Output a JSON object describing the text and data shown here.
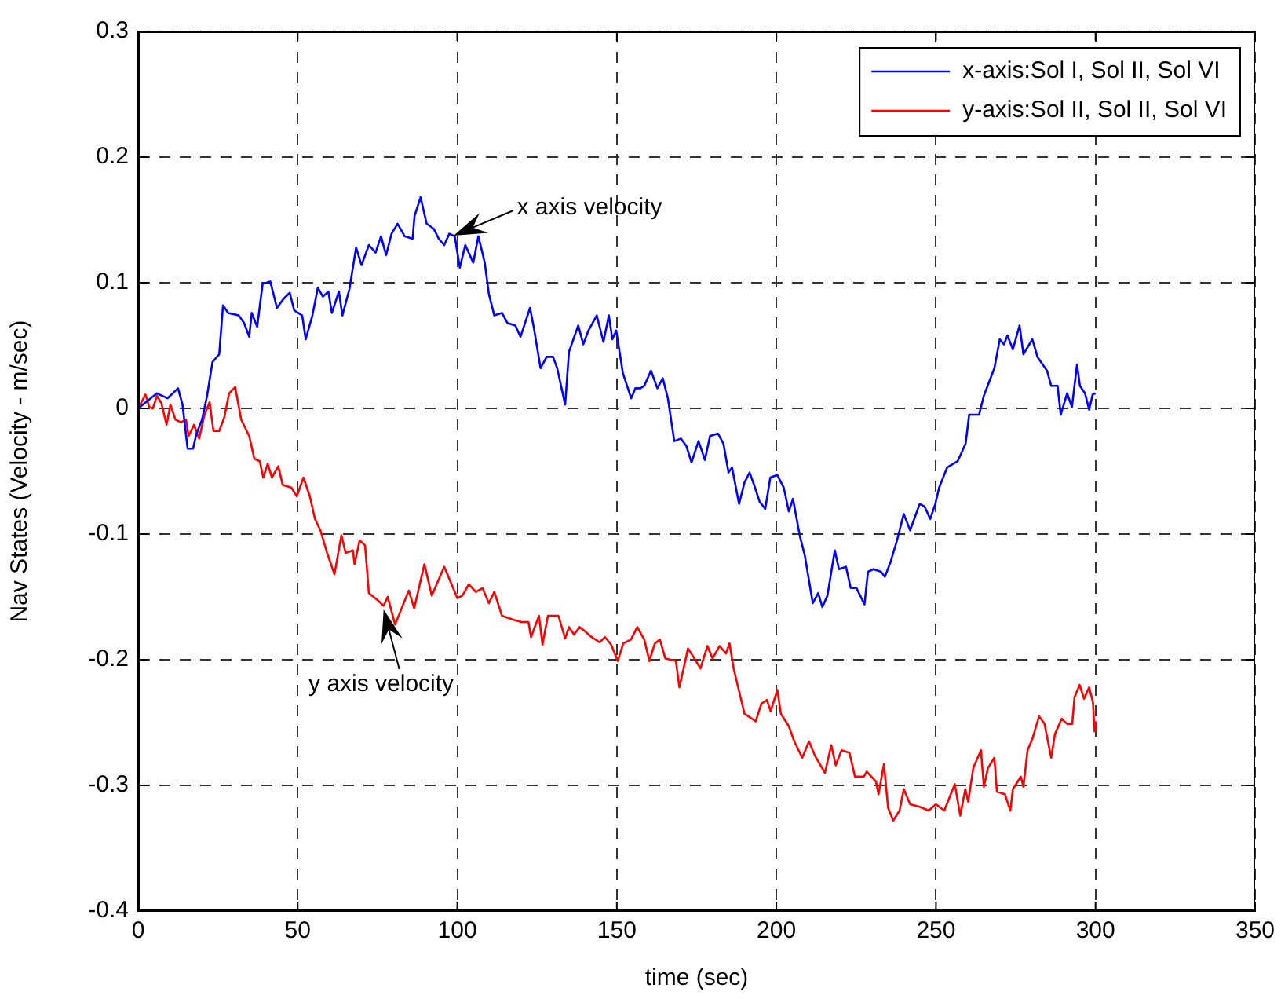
{
  "chart_data": {
    "type": "line",
    "xlabel": "time (sec)",
    "ylabel": "Nav States (Velocity - m/sec)",
    "xlim": [
      0,
      350
    ],
    "xticks": [
      0,
      50,
      100,
      150,
      200,
      250,
      300,
      350
    ],
    "ylim": [
      -0.4,
      0.3
    ],
    "yticks": [
      -0.4,
      -0.3,
      -0.2,
      -0.1,
      0,
      0.1,
      0.2,
      0.3
    ],
    "grid": true,
    "legend": "top right",
    "line_style": "solid",
    "marker": "none",
    "annotations": [
      {
        "text": "x axis velocity",
        "x": 99,
        "y": 0.137
      },
      {
        "text": "y axis velocity",
        "x": 77,
        "y": -0.16
      }
    ],
    "series": [
      {
        "name": "x-axis:Sol I, Sol II, Sol VI",
        "color": "#0000ff",
        "x": [
          0,
          5.9,
          9.2,
          12.5,
          13.9,
          15.5,
          17.2,
          18.3,
          20,
          21.6,
          23.3,
          25.4,
          26.6,
          28.2,
          31.5,
          33.2,
          34.8,
          35.6,
          37.3,
          39,
          41.4,
          43.5,
          45.5,
          47.5,
          48.9,
          51.4,
          52.5,
          54.6,
          56.3,
          57.9,
          59.6,
          60.7,
          62.9,
          64,
          66.2,
          68.3,
          70,
          72.3,
          74.4,
          76.1,
          77.7,
          79.4,
          81.3,
          83.5,
          86,
          86.6,
          88.5,
          90.4,
          92.6,
          94.2,
          95.9,
          97.5,
          99.2,
          100.8,
          102.5,
          105,
          106.6,
          108.6,
          109.9,
          111.6,
          114,
          115.7,
          118.2,
          119.8,
          122.8,
          124,
          126.1,
          128,
          130,
          131.3,
          133.8,
          135,
          137.9,
          139.5,
          141.1,
          143.7,
          145.8,
          147.5,
          148.6,
          149.8,
          151.9,
          154.5,
          155.8,
          157.4,
          158.6,
          160.7,
          162.7,
          164.4,
          166,
          168,
          170.1,
          171.8,
          173.4,
          175.6,
          177.6,
          179.2,
          181.7,
          183.4,
          185,
          186.1,
          188.3,
          190,
          191.6,
          193.3,
          194.7,
          196.5,
          198.1,
          200.3,
          202.3,
          203.9,
          205.2,
          207.3,
          208.9,
          211.4,
          213.1,
          214.4,
          216,
          218.3,
          219.6,
          221.8,
          223.3,
          225.1,
          227.6,
          228.7,
          230.4,
          232.8,
          234,
          235.8,
          237.8,
          239.9,
          241.9,
          243.2,
          244.9,
          246.4,
          248.2,
          249.8,
          251,
          253.5,
          256.8,
          259.3,
          260.4,
          263.5,
          265,
          268.3,
          270,
          271.3,
          272.4,
          274.1,
          276.2,
          277.4,
          280.2,
          281.8,
          284.8,
          286.1,
          288.1,
          289.1,
          291.1,
          292.6,
          294.2,
          295.1,
          296.7,
          298,
          299.1,
          300
        ],
        "values": [
          0,
          0.012,
          0.008,
          0.016,
          0.003,
          -0.032,
          -0.032,
          -0.02,
          -0.009,
          0.01,
          0.037,
          0.043,
          0.082,
          0.076,
          0.074,
          0.068,
          0.057,
          0.076,
          0.065,
          0.099,
          0.101,
          0.08,
          0.087,
          0.092,
          0.078,
          0.074,
          0.055,
          0.074,
          0.096,
          0.089,
          0.093,
          0.076,
          0.093,
          0.074,
          0.095,
          0.128,
          0.114,
          0.13,
          0.124,
          0.137,
          0.122,
          0.139,
          0.147,
          0.137,
          0.135,
          0.153,
          0.168,
          0.147,
          0.143,
          0.135,
          0.13,
          0.139,
          0.137,
          0.112,
          0.13,
          0.116,
          0.137,
          0.116,
          0.091,
          0.074,
          0.076,
          0.068,
          0.066,
          0.057,
          0.08,
          0.064,
          0.032,
          0.041,
          0.041,
          0.032,
          0.003,
          0.045,
          0.066,
          0.051,
          0.062,
          0.074,
          0.053,
          0.074,
          0.055,
          0.062,
          0.028,
          0.008,
          0.016,
          0.016,
          0.018,
          0.03,
          0.016,
          0.024,
          0.008,
          -0.026,
          -0.024,
          -0.03,
          -0.043,
          -0.026,
          -0.041,
          -0.022,
          -0.02,
          -0.028,
          -0.051,
          -0.047,
          -0.076,
          -0.059,
          -0.051,
          -0.063,
          -0.074,
          -0.08,
          -0.055,
          -0.053,
          -0.063,
          -0.082,
          -0.072,
          -0.101,
          -0.117,
          -0.155,
          -0.147,
          -0.158,
          -0.149,
          -0.113,
          -0.128,
          -0.126,
          -0.143,
          -0.143,
          -0.156,
          -0.13,
          -0.128,
          -0.13,
          -0.134,
          -0.122,
          -0.105,
          -0.084,
          -0.097,
          -0.088,
          -0.076,
          -0.078,
          -0.088,
          -0.076,
          -0.063,
          -0.047,
          -0.042,
          -0.028,
          -0.005,
          -0.005,
          0.01,
          0.032,
          0.055,
          0.051,
          0.058,
          0.047,
          0.066,
          0.043,
          0.055,
          0.041,
          0.03,
          0.018,
          0.018,
          -0.005,
          0.012,
          0.001,
          0.035,
          0.018,
          0.012,
          -0.001,
          0.011,
          0.012
        ]
      },
      {
        "name": "y-axis:Sol II, Sol II, Sol VI",
        "color": "#ff0000",
        "x": [
          0,
          2.3,
          3.5,
          4.6,
          5.9,
          7.3,
          8.9,
          10.1,
          11.7,
          13.4,
          15,
          15.8,
          17.5,
          19.1,
          20.8,
          22.4,
          23.6,
          25.4,
          27,
          28.5,
          30.4,
          32.3,
          34.8,
          36.4,
          38.1,
          39.2,
          40.6,
          41.9,
          43.9,
          45.3,
          48,
          49.7,
          51.8,
          53.8,
          55.4,
          57.1,
          59.2,
          61.5,
          63.7,
          65,
          67.3,
          67.8,
          69.4,
          71.1,
          72.3,
          75.2,
          76.9,
          78.2,
          80.5,
          84.8,
          86.5,
          89.7,
          92,
          95.9,
          100,
          101.6,
          103.6,
          105.8,
          107.9,
          109.9,
          111.6,
          114,
          117.3,
          120.1,
          122.3,
          123.1,
          125.6,
          126.7,
          128.4,
          131.7,
          133.8,
          135,
          136.6,
          138.3,
          139.9,
          142.1,
          144.6,
          146.3,
          148.2,
          150.3,
          152,
          154.4,
          156.4,
          158.6,
          160.2,
          161.9,
          163.5,
          165.2,
          168.5,
          169.6,
          172.3,
          174.3,
          176.2,
          178.4,
          180,
          182.2,
          184.2,
          185.3,
          186.6,
          190,
          192.4,
          193.5,
          195.3,
          197,
          198.2,
          200.3,
          201.4,
          203.9,
          205.6,
          208.1,
          210.2,
          212.2,
          215.2,
          217.2,
          218.6,
          220.4,
          222.9,
          224.6,
          227.4,
          228.3,
          231.2,
          232,
          233.7,
          235,
          236.6,
          238.6,
          239.9,
          241.9,
          244.9,
          247.7,
          250,
          252.6,
          255.9,
          257.6,
          259.2,
          260.1,
          261.7,
          264.1,
          265,
          266.3,
          268.3,
          269.1,
          271.6,
          273.3,
          274.1,
          276.6,
          277.4,
          278.7,
          280.2,
          282.3,
          284,
          286.1,
          287.3,
          289.4,
          291.1,
          292.7,
          293.4,
          295,
          296.4,
          298,
          299.2,
          299.7,
          300
        ],
        "values": [
          0,
          0.011,
          0.001,
          0,
          0.01,
          0.004,
          -0.013,
          0.003,
          -0.009,
          -0.011,
          -0.009,
          -0.022,
          -0.013,
          -0.024,
          -0.005,
          0.005,
          -0.018,
          -0.018,
          -0.007,
          0.012,
          0.017,
          -0.009,
          -0.022,
          -0.04,
          -0.042,
          -0.055,
          -0.044,
          -0.055,
          -0.046,
          -0.061,
          -0.063,
          -0.07,
          -0.055,
          -0.07,
          -0.088,
          -0.097,
          -0.115,
          -0.132,
          -0.101,
          -0.115,
          -0.113,
          -0.124,
          -0.105,
          -0.109,
          -0.147,
          -0.153,
          -0.157,
          -0.15,
          -0.172,
          -0.145,
          -0.159,
          -0.124,
          -0.149,
          -0.126,
          -0.151,
          -0.149,
          -0.14,
          -0.146,
          -0.143,
          -0.155,
          -0.146,
          -0.165,
          -0.168,
          -0.17,
          -0.17,
          -0.182,
          -0.165,
          -0.188,
          -0.165,
          -0.165,
          -0.183,
          -0.174,
          -0.18,
          -0.174,
          -0.177,
          -0.182,
          -0.186,
          -0.182,
          -0.188,
          -0.201,
          -0.187,
          -0.184,
          -0.174,
          -0.184,
          -0.201,
          -0.187,
          -0.184,
          -0.199,
          -0.201,
          -0.222,
          -0.191,
          -0.199,
          -0.207,
          -0.189,
          -0.199,
          -0.189,
          -0.195,
          -0.187,
          -0.207,
          -0.243,
          -0.247,
          -0.249,
          -0.235,
          -0.232,
          -0.241,
          -0.224,
          -0.243,
          -0.253,
          -0.265,
          -0.278,
          -0.265,
          -0.277,
          -0.29,
          -0.268,
          -0.284,
          -0.272,
          -0.274,
          -0.293,
          -0.293,
          -0.289,
          -0.297,
          -0.307,
          -0.283,
          -0.318,
          -0.328,
          -0.32,
          -0.303,
          -0.315,
          -0.317,
          -0.32,
          -0.315,
          -0.32,
          -0.299,
          -0.324,
          -0.303,
          -0.313,
          -0.286,
          -0.272,
          -0.301,
          -0.286,
          -0.278,
          -0.305,
          -0.307,
          -0.32,
          -0.303,
          -0.293,
          -0.301,
          -0.272,
          -0.263,
          -0.245,
          -0.251,
          -0.278,
          -0.259,
          -0.247,
          -0.251,
          -0.251,
          -0.23,
          -0.22,
          -0.231,
          -0.222,
          -0.234,
          -0.257,
          -0.249
        ]
      }
    ]
  }
}
